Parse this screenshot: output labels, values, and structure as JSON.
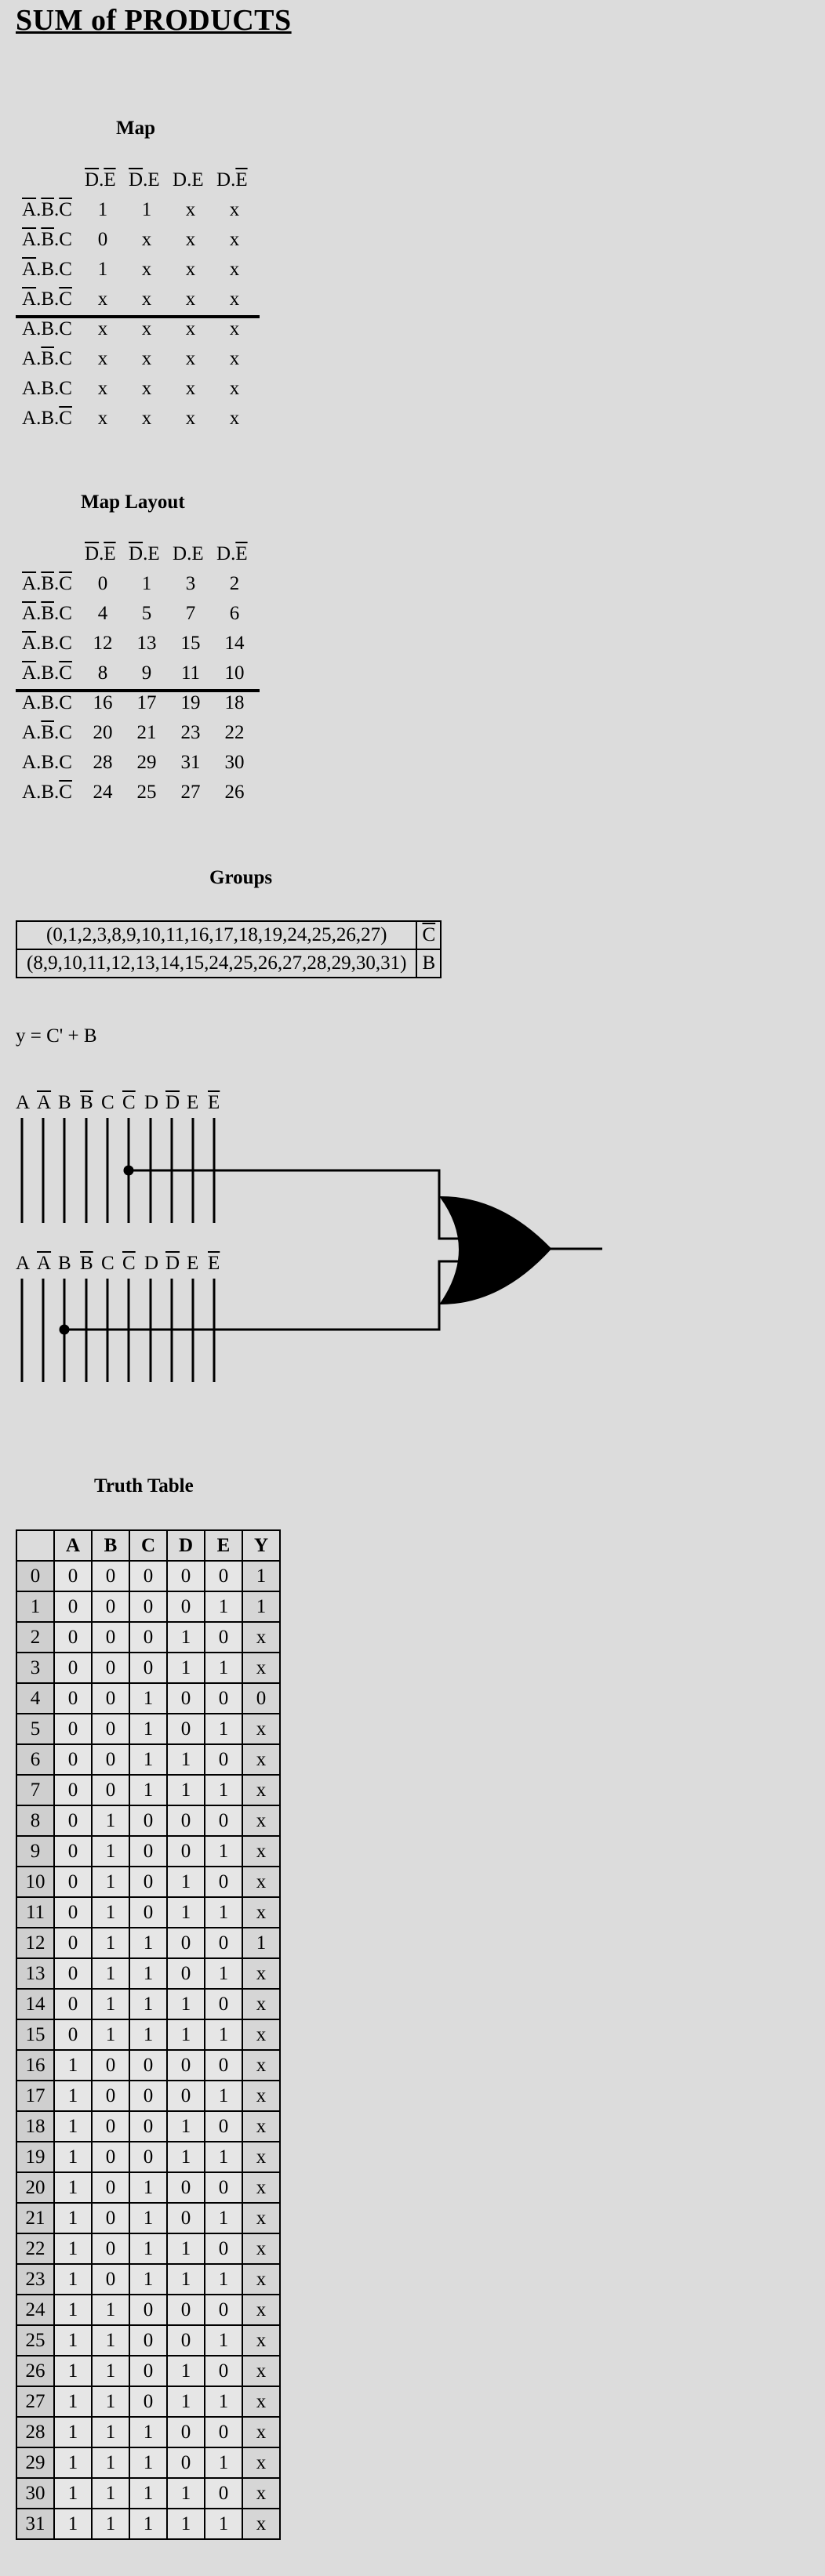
{
  "title": "SUM of PRODUCTS",
  "map": {
    "heading": "Map",
    "col_headers": [
      [
        {
          "t": "D",
          "b": true
        },
        {
          "t": ".",
          "b": false
        },
        {
          "t": "E",
          "b": true
        }
      ],
      [
        {
          "t": "D",
          "b": true
        },
        {
          "t": ".",
          "b": false
        },
        {
          "t": "E",
          "b": false
        }
      ],
      [
        {
          "t": "D",
          "b": false
        },
        {
          "t": ".",
          "b": false
        },
        {
          "t": "E",
          "b": false
        }
      ],
      [
        {
          "t": "D",
          "b": false
        },
        {
          "t": ".",
          "b": false
        },
        {
          "t": "E",
          "b": true
        }
      ]
    ],
    "row_headers": [
      [
        {
          "t": "A",
          "b": true
        },
        {
          "t": ".",
          "b": false
        },
        {
          "t": "B",
          "b": true
        },
        {
          "t": ".",
          "b": false
        },
        {
          "t": "C",
          "b": true
        }
      ],
      [
        {
          "t": "A",
          "b": true
        },
        {
          "t": ".",
          "b": false
        },
        {
          "t": "B",
          "b": true
        },
        {
          "t": ".",
          "b": false
        },
        {
          "t": "C",
          "b": false
        }
      ],
      [
        {
          "t": "A",
          "b": true
        },
        {
          "t": ".",
          "b": false
        },
        {
          "t": "B",
          "b": false
        },
        {
          "t": ".",
          "b": false
        },
        {
          "t": "C",
          "b": false
        }
      ],
      [
        {
          "t": "A",
          "b": true
        },
        {
          "t": ".",
          "b": false
        },
        {
          "t": "B",
          "b": false
        },
        {
          "t": ".",
          "b": false
        },
        {
          "t": "C",
          "b": true
        }
      ],
      [
        {
          "t": "A",
          "b": false
        },
        {
          "t": ".",
          "b": false
        },
        {
          "t": "B",
          "b": true
        },
        {
          "t": ".",
          "b": false
        },
        {
          "t": "C",
          "b": true
        }
      ],
      [
        {
          "t": "A",
          "b": false
        },
        {
          "t": ".",
          "b": false
        },
        {
          "t": "B",
          "b": true
        },
        {
          "t": ".",
          "b": false
        },
        {
          "t": "C",
          "b": false
        }
      ],
      [
        {
          "t": "A",
          "b": false
        },
        {
          "t": ".",
          "b": false
        },
        {
          "t": "B",
          "b": false
        },
        {
          "t": ".",
          "b": false
        },
        {
          "t": "C",
          "b": false
        }
      ],
      [
        {
          "t": "A",
          "b": false
        },
        {
          "t": ".",
          "b": false
        },
        {
          "t": "B",
          "b": false
        },
        {
          "t": ".",
          "b": false
        },
        {
          "t": "C",
          "b": true
        }
      ]
    ],
    "cells": [
      [
        "1",
        "1",
        "x",
        "x"
      ],
      [
        "0",
        "x",
        "x",
        "x"
      ],
      [
        "1",
        "x",
        "x",
        "x"
      ],
      [
        "x",
        "x",
        "x",
        "x"
      ],
      [
        "x",
        "x",
        "x",
        "x"
      ],
      [
        "x",
        "x",
        "x",
        "x"
      ],
      [
        "x",
        "x",
        "x",
        "x"
      ],
      [
        "x",
        "x",
        "x",
        "x"
      ]
    ]
  },
  "layout": {
    "heading": "Map Layout",
    "col_headers": [
      [
        {
          "t": "D",
          "b": true
        },
        {
          "t": ".",
          "b": false
        },
        {
          "t": "E",
          "b": true
        }
      ],
      [
        {
          "t": "D",
          "b": true
        },
        {
          "t": ".",
          "b": false
        },
        {
          "t": "E",
          "b": false
        }
      ],
      [
        {
          "t": "D",
          "b": false
        },
        {
          "t": ".",
          "b": false
        },
        {
          "t": "E",
          "b": false
        }
      ],
      [
        {
          "t": "D",
          "b": false
        },
        {
          "t": ".",
          "b": false
        },
        {
          "t": "E",
          "b": true
        }
      ]
    ],
    "row_headers": [
      [
        {
          "t": "A",
          "b": true
        },
        {
          "t": ".",
          "b": false
        },
        {
          "t": "B",
          "b": true
        },
        {
          "t": ".",
          "b": false
        },
        {
          "t": "C",
          "b": true
        }
      ],
      [
        {
          "t": "A",
          "b": true
        },
        {
          "t": ".",
          "b": false
        },
        {
          "t": "B",
          "b": true
        },
        {
          "t": ".",
          "b": false
        },
        {
          "t": "C",
          "b": false
        }
      ],
      [
        {
          "t": "A",
          "b": true
        },
        {
          "t": ".",
          "b": false
        },
        {
          "t": "B",
          "b": false
        },
        {
          "t": ".",
          "b": false
        },
        {
          "t": "C",
          "b": false
        }
      ],
      [
        {
          "t": "A",
          "b": true
        },
        {
          "t": ".",
          "b": false
        },
        {
          "t": "B",
          "b": false
        },
        {
          "t": ".",
          "b": false
        },
        {
          "t": "C",
          "b": true
        }
      ],
      [
        {
          "t": "A",
          "b": false
        },
        {
          "t": ".",
          "b": false
        },
        {
          "t": "B",
          "b": true
        },
        {
          "t": ".",
          "b": false
        },
        {
          "t": "C",
          "b": true
        }
      ],
      [
        {
          "t": "A",
          "b": false
        },
        {
          "t": ".",
          "b": false
        },
        {
          "t": "B",
          "b": true
        },
        {
          "t": ".",
          "b": false
        },
        {
          "t": "C",
          "b": false
        }
      ],
      [
        {
          "t": "A",
          "b": false
        },
        {
          "t": ".",
          "b": false
        },
        {
          "t": "B",
          "b": false
        },
        {
          "t": ".",
          "b": false
        },
        {
          "t": "C",
          "b": false
        }
      ],
      [
        {
          "t": "A",
          "b": false
        },
        {
          "t": ".",
          "b": false
        },
        {
          "t": "B",
          "b": false
        },
        {
          "t": ".",
          "b": false
        },
        {
          "t": "C",
          "b": true
        }
      ]
    ],
    "cells": [
      [
        "0",
        "1",
        "3",
        "2"
      ],
      [
        "4",
        "5",
        "7",
        "6"
      ],
      [
        "12",
        "13",
        "15",
        "14"
      ],
      [
        "8",
        "9",
        "11",
        "10"
      ],
      [
        "16",
        "17",
        "19",
        "18"
      ],
      [
        "20",
        "21",
        "23",
        "22"
      ],
      [
        "28",
        "29",
        "31",
        "30"
      ],
      [
        "24",
        "25",
        "27",
        "26"
      ]
    ]
  },
  "groups": {
    "heading": "Groups",
    "rows": [
      {
        "terms": "(0,1,2,3,8,9,10,11,16,17,18,19,24,25,26,27)",
        "result": "C",
        "result_bar": true
      },
      {
        "terms": "(8,9,10,11,12,13,14,15,24,25,26,27,28,29,30,31)",
        "result": "B",
        "result_bar": false
      }
    ]
  },
  "equation": "y = C' + B",
  "circuit": {
    "input_labels": [
      {
        "t": "A",
        "b": false
      },
      {
        "t": "A",
        "b": true
      },
      {
        "t": "B",
        "b": false
      },
      {
        "t": "B",
        "b": true
      },
      {
        "t": "C",
        "b": false
      },
      {
        "t": "C",
        "b": true
      },
      {
        "t": "D",
        "b": false
      },
      {
        "t": "D",
        "b": true
      },
      {
        "t": "E",
        "b": false
      },
      {
        "t": "E",
        "b": true
      }
    ],
    "gate": "OR",
    "group1_tap": "C'",
    "group2_tap": "B"
  },
  "truth_table": {
    "heading": "Truth Table",
    "headers": [
      "A",
      "B",
      "C",
      "D",
      "E",
      "Y"
    ],
    "rows": [
      [
        "0",
        "0",
        "0",
        "0",
        "0",
        "0",
        "1"
      ],
      [
        "1",
        "0",
        "0",
        "0",
        "0",
        "1",
        "1"
      ],
      [
        "2",
        "0",
        "0",
        "0",
        "1",
        "0",
        "x"
      ],
      [
        "3",
        "0",
        "0",
        "0",
        "1",
        "1",
        "x"
      ],
      [
        "4",
        "0",
        "0",
        "1",
        "0",
        "0",
        "0"
      ],
      [
        "5",
        "0",
        "0",
        "1",
        "0",
        "1",
        "x"
      ],
      [
        "6",
        "0",
        "0",
        "1",
        "1",
        "0",
        "x"
      ],
      [
        "7",
        "0",
        "0",
        "1",
        "1",
        "1",
        "x"
      ],
      [
        "8",
        "0",
        "1",
        "0",
        "0",
        "0",
        "x"
      ],
      [
        "9",
        "0",
        "1",
        "0",
        "0",
        "1",
        "x"
      ],
      [
        "10",
        "0",
        "1",
        "0",
        "1",
        "0",
        "x"
      ],
      [
        "11",
        "0",
        "1",
        "0",
        "1",
        "1",
        "x"
      ],
      [
        "12",
        "0",
        "1",
        "1",
        "0",
        "0",
        "1"
      ],
      [
        "13",
        "0",
        "1",
        "1",
        "0",
        "1",
        "x"
      ],
      [
        "14",
        "0",
        "1",
        "1",
        "1",
        "0",
        "x"
      ],
      [
        "15",
        "0",
        "1",
        "1",
        "1",
        "1",
        "x"
      ],
      [
        "16",
        "1",
        "0",
        "0",
        "0",
        "0",
        "x"
      ],
      [
        "17",
        "1",
        "0",
        "0",
        "0",
        "1",
        "x"
      ],
      [
        "18",
        "1",
        "0",
        "0",
        "1",
        "0",
        "x"
      ],
      [
        "19",
        "1",
        "0",
        "0",
        "1",
        "1",
        "x"
      ],
      [
        "20",
        "1",
        "0",
        "1",
        "0",
        "0",
        "x"
      ],
      [
        "21",
        "1",
        "0",
        "1",
        "0",
        "1",
        "x"
      ],
      [
        "22",
        "1",
        "0",
        "1",
        "1",
        "0",
        "x"
      ],
      [
        "23",
        "1",
        "0",
        "1",
        "1",
        "1",
        "x"
      ],
      [
        "24",
        "1",
        "1",
        "0",
        "0",
        "0",
        "x"
      ],
      [
        "25",
        "1",
        "1",
        "0",
        "0",
        "1",
        "x"
      ],
      [
        "26",
        "1",
        "1",
        "0",
        "1",
        "0",
        "x"
      ],
      [
        "27",
        "1",
        "1",
        "0",
        "1",
        "1",
        "x"
      ],
      [
        "28",
        "1",
        "1",
        "1",
        "0",
        "0",
        "x"
      ],
      [
        "29",
        "1",
        "1",
        "1",
        "0",
        "1",
        "x"
      ],
      [
        "30",
        "1",
        "1",
        "1",
        "1",
        "0",
        "x"
      ],
      [
        "31",
        "1",
        "1",
        "1",
        "1",
        "1",
        "x"
      ]
    ]
  }
}
